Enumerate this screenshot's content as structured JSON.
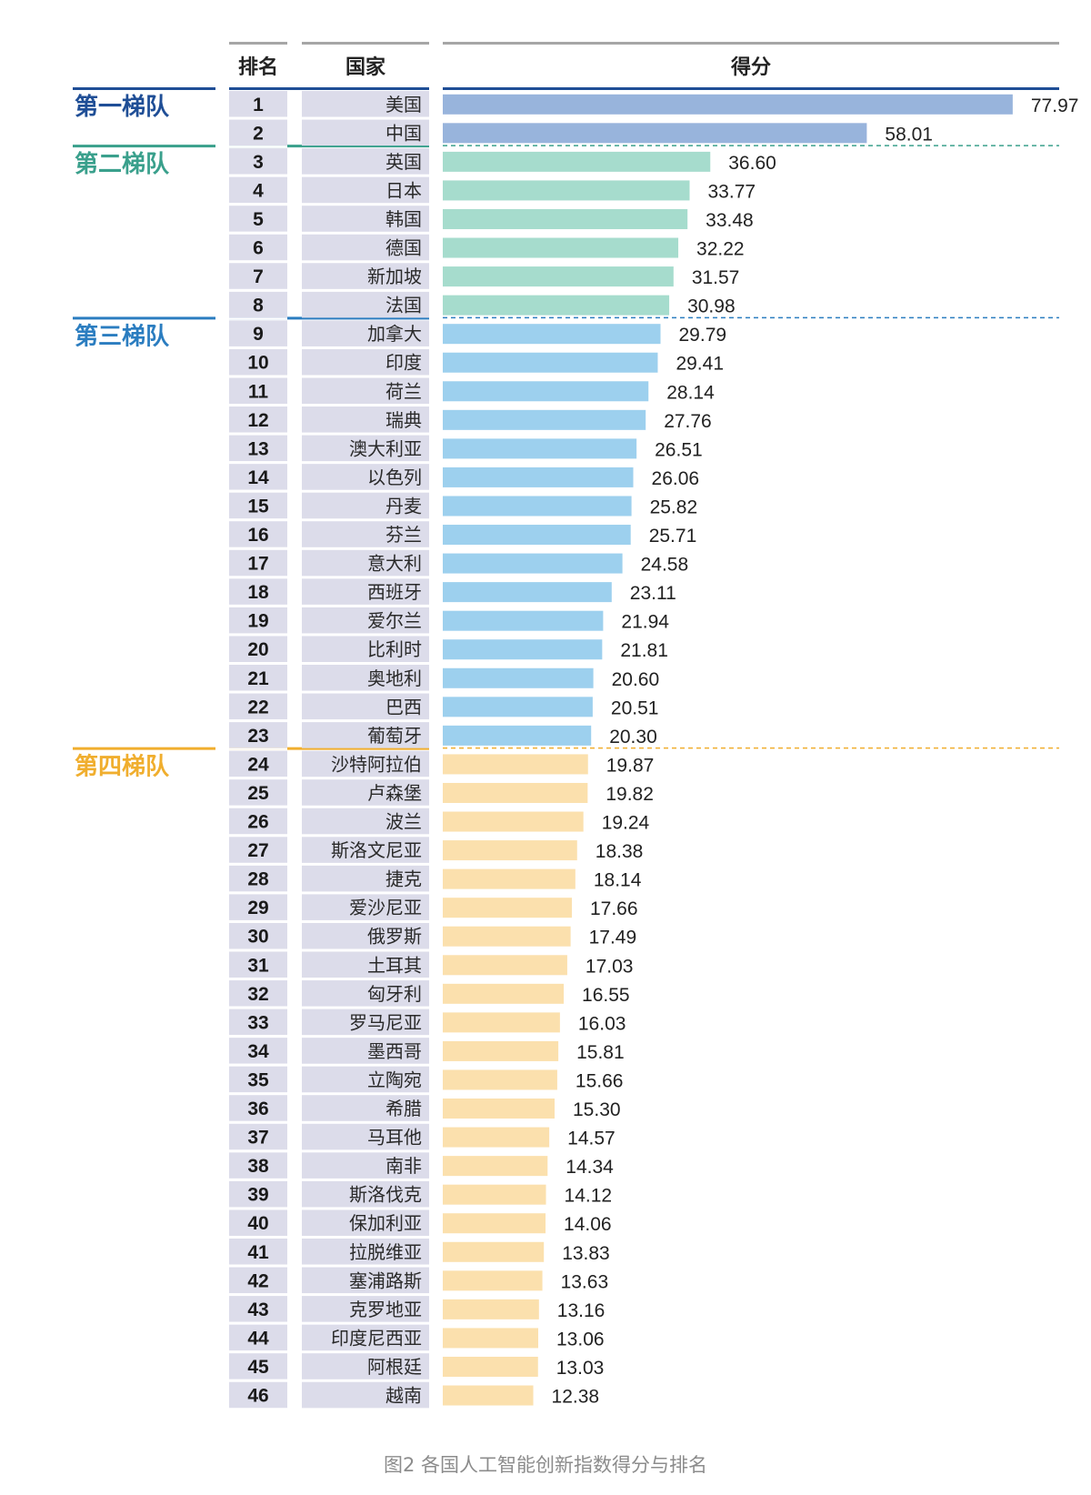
{
  "chart_data": {
    "type": "bar",
    "orientation": "horizontal",
    "headers": {
      "rank": "排名",
      "country": "国家",
      "score": "得分"
    },
    "caption": "图2 各国人工智能创新指数得分与排名",
    "tiers": [
      {
        "label": "第一梯队",
        "color": "#1f4e96",
        "bar_color": "#98b4dc",
        "start": 0,
        "end": 1
      },
      {
        "label": "第二梯队",
        "color": "#3aa08c",
        "bar_color": "#a6dccd",
        "start": 2,
        "end": 7
      },
      {
        "label": "第三梯队",
        "color": "#2b7dc0",
        "bar_color": "#9dd0ee",
        "start": 8,
        "end": 22
      },
      {
        "label": "第四梯队",
        "color": "#f0ae2e",
        "bar_color": "#fbe0ad",
        "start": 23,
        "end": 45
      }
    ],
    "ranks": [
      1,
      2,
      3,
      4,
      5,
      6,
      7,
      8,
      9,
      10,
      11,
      12,
      13,
      14,
      15,
      16,
      17,
      18,
      19,
      20,
      21,
      22,
      23,
      24,
      25,
      26,
      27,
      28,
      29,
      30,
      31,
      32,
      33,
      34,
      35,
      36,
      37,
      38,
      39,
      40,
      41,
      42,
      43,
      44,
      45,
      46
    ],
    "categories": [
      "美国",
      "中国",
      "英国",
      "日本",
      "韩国",
      "德国",
      "新加坡",
      "法国",
      "加拿大",
      "印度",
      "荷兰",
      "瑞典",
      "澳大利亚",
      "以色列",
      "丹麦",
      "芬兰",
      "意大利",
      "西班牙",
      "爱尔兰",
      "比利时",
      "奥地利",
      "巴西",
      "葡萄牙",
      "沙特阿拉伯",
      "卢森堡",
      "波兰",
      "斯洛文尼亚",
      "捷克",
      "爱沙尼亚",
      "俄罗斯",
      "土耳其",
      "匈牙利",
      "罗马尼亚",
      "墨西哥",
      "立陶宛",
      "希腊",
      "马耳他",
      "南非",
      "斯洛伐克",
      "保加利亚",
      "拉脱维亚",
      "塞浦路斯",
      "克罗地亚",
      "印度尼西亚",
      "阿根廷",
      "越南"
    ],
    "values": [
      77.97,
      58.01,
      36.6,
      33.77,
      33.48,
      32.22,
      31.57,
      30.98,
      29.79,
      29.41,
      28.14,
      27.76,
      26.51,
      26.06,
      25.82,
      25.71,
      24.58,
      23.11,
      21.94,
      21.81,
      20.6,
      20.51,
      20.3,
      19.87,
      19.82,
      19.24,
      18.38,
      18.14,
      17.66,
      17.49,
      17.03,
      16.55,
      16.03,
      15.81,
      15.66,
      15.3,
      14.57,
      14.34,
      14.12,
      14.06,
      13.83,
      13.63,
      13.16,
      13.06,
      13.03,
      12.38
    ],
    "labels": [
      "77.97",
      "58.01",
      "36.60",
      "33.77",
      "33.48",
      "32.22",
      "31.57",
      "30.98",
      "29.79",
      "29.41",
      "28.14",
      "27.76",
      "26.51",
      "26.06",
      "25.82",
      "25.71",
      "24.58",
      "23.11",
      "21.94",
      "21.81",
      "20.60",
      "20.51",
      "20.30",
      "19.87",
      "19.82",
      "19.24",
      "18.38",
      "18.14",
      "17.66",
      "17.49",
      "17.03",
      "16.55",
      "16.03",
      "15.81",
      "15.66",
      "15.30",
      "14.57",
      "14.34",
      "14.12",
      "14.06",
      "13.83",
      "13.63",
      "13.16",
      "13.06",
      "13.03",
      "12.38"
    ],
    "xlim": [
      0,
      80
    ]
  }
}
